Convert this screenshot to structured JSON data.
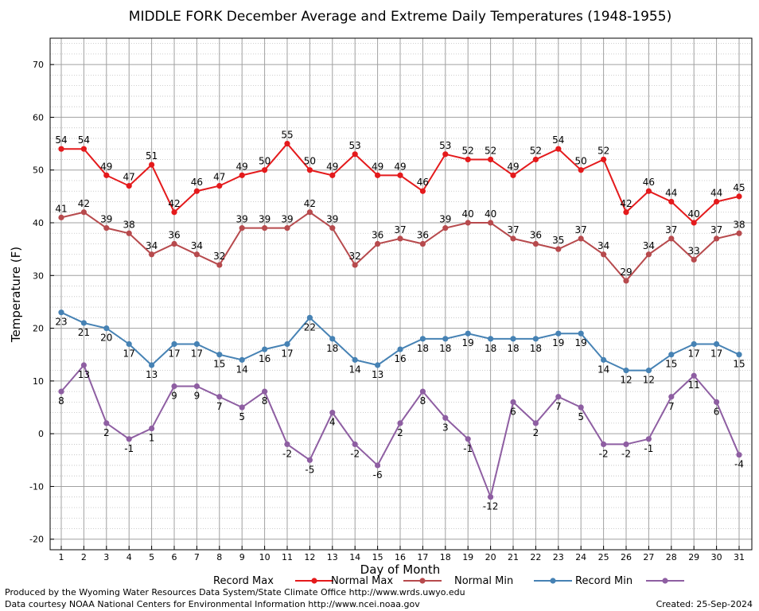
{
  "chart_data": {
    "type": "line",
    "title": "MIDDLE FORK December Average and Extreme Daily Temperatures (1948-1955)",
    "xlabel": "Day of Month",
    "ylabel": "Temperature (F)",
    "ylim": [
      -22,
      75
    ],
    "yticks": [
      -20,
      -10,
      0,
      10,
      20,
      30,
      40,
      50,
      60,
      70
    ],
    "x": [
      1,
      2,
      3,
      4,
      5,
      6,
      7,
      8,
      9,
      10,
      11,
      12,
      13,
      14,
      15,
      16,
      17,
      18,
      19,
      20,
      21,
      22,
      23,
      24,
      25,
      26,
      27,
      28,
      29,
      30,
      31
    ],
    "grid": true,
    "legend_position": "bottom",
    "series": [
      {
        "name": "Record Max",
        "color": "#e41a1c",
        "values": [
          54,
          54,
          49,
          47,
          51,
          42,
          46,
          47,
          49,
          50,
          55,
          50,
          49,
          53,
          49,
          49,
          46,
          53,
          52,
          52,
          49,
          52,
          54,
          50,
          52,
          42,
          46,
          44,
          40,
          44,
          45
        ]
      },
      {
        "name": "Normal Max",
        "color": "#b74a4d",
        "values": [
          41,
          42,
          39,
          38,
          34,
          36,
          34,
          32,
          39,
          39,
          39,
          42,
          39,
          32,
          36,
          37,
          36,
          39,
          40,
          40,
          37,
          36,
          35,
          37,
          34,
          29,
          34,
          37,
          33,
          37,
          38
        ]
      },
      {
        "name": "Normal Min",
        "color": "#4682b4",
        "values": [
          23,
          21,
          20,
          17,
          13,
          17,
          17,
          15,
          14,
          16,
          17,
          22,
          18,
          14,
          13,
          16,
          18,
          18,
          19,
          18,
          18,
          18,
          19,
          19,
          14,
          12,
          12,
          15,
          17,
          17,
          15
        ]
      },
      {
        "name": "Record Min",
        "color": "#8e5ea2",
        "values": [
          8,
          13,
          2,
          -1,
          1,
          9,
          9,
          7,
          5,
          8,
          -2,
          -5,
          4,
          -2,
          -6,
          2,
          8,
          3,
          -1,
          -12,
          6,
          2,
          7,
          5,
          -2,
          -2,
          -1,
          7,
          11,
          6,
          -4
        ]
      }
    ]
  },
  "footer": {
    "line1": "Produced by the Wyoming Water Resources Data System/State Climate Office http://www.wrds.uwyo.edu",
    "line2": "Data courtesy NOAA National Centers for Environmental Information http://www.ncei.noaa.gov",
    "created": "Created:  25-Sep-2024"
  }
}
